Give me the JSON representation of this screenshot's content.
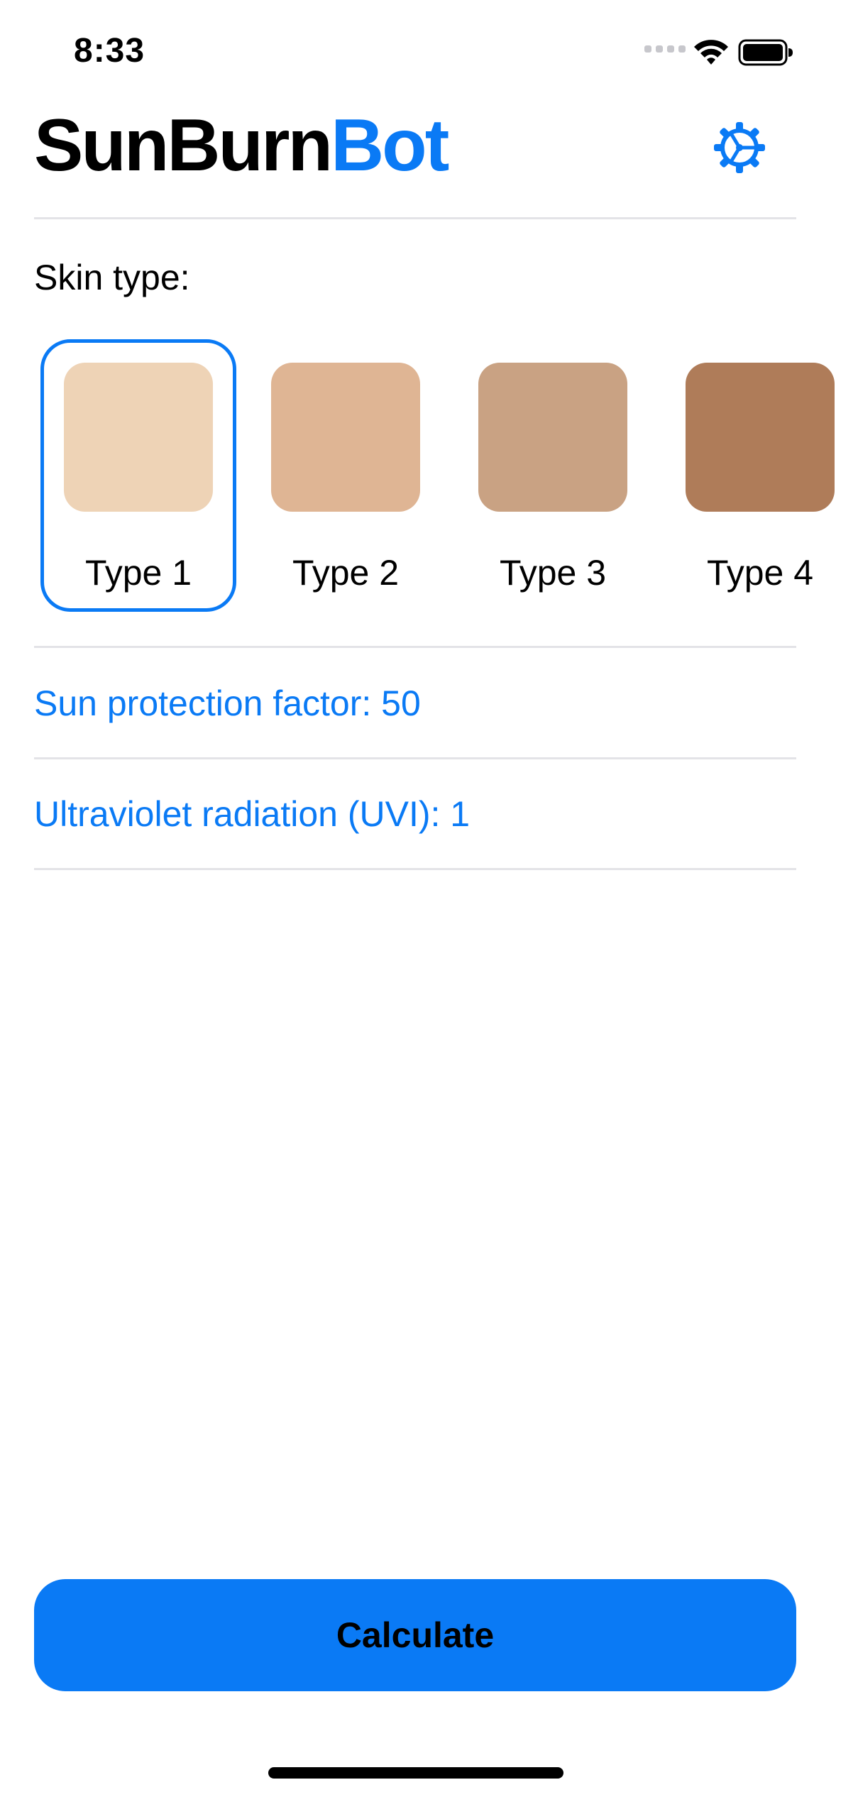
{
  "status_bar": {
    "time": "8:33",
    "icons": [
      "signal-icon",
      "wifi-icon",
      "battery-icon"
    ]
  },
  "header": {
    "title_part1": "SunBurn",
    "title_part2": "Bot",
    "settings_icon": "gear-icon"
  },
  "skin_section": {
    "label": "Skin type:",
    "selected_index": 0,
    "options": [
      {
        "label": "Type 1",
        "color": "#eed3b6"
      },
      {
        "label": "Type 2",
        "color": "#dfb594"
      },
      {
        "label": "Type 3",
        "color": "#c9a283"
      },
      {
        "label": "Type 4",
        "color": "#af7c59"
      }
    ]
  },
  "settings_rows": {
    "spf": "Sun protection factor: 50",
    "uvi": "Ultraviolet radiation (UVI): 1"
  },
  "actions": {
    "calculate_label": "Calculate"
  },
  "colors": {
    "accent": "#0a7af5",
    "divider": "#e3e3e7",
    "text": "#000000"
  }
}
